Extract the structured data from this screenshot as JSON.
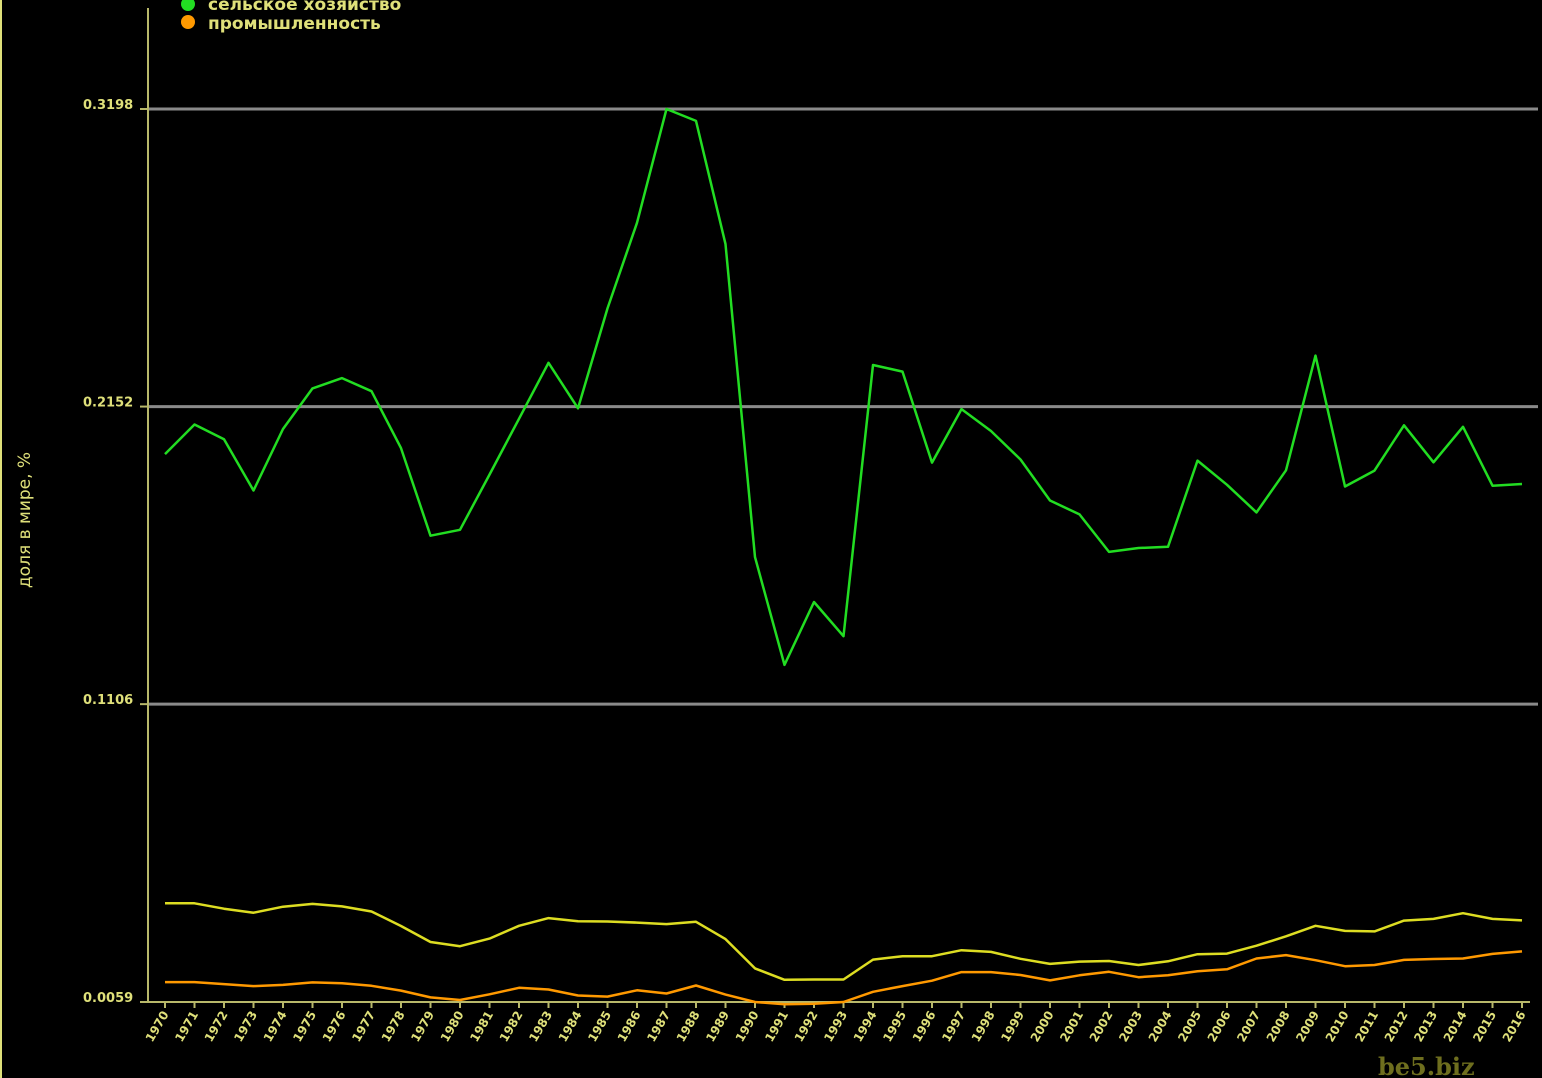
{
  "chart_data": {
    "type": "line",
    "ylabel": "доля в мире, %",
    "xlabel": "",
    "title": "",
    "yticks": [
      "0.0059",
      "0.1106",
      "0.2152",
      "0.3198"
    ],
    "ylim": [
      0.0059,
      0.3198
    ],
    "grid": true,
    "legend_position": "top-left",
    "legend": [
      {
        "label": "сельское хозяйство",
        "color": "#22dd22"
      },
      {
        "label": "промышленность",
        "color": "#ff9900"
      }
    ],
    "x": [
      "1970",
      "1971",
      "1972",
      "1973",
      "1974",
      "1975",
      "1976",
      "1977",
      "1978",
      "1979",
      "1980",
      "1981",
      "1982",
      "1983",
      "1984",
      "1985",
      "1986",
      "1987",
      "1988",
      "1989",
      "1990",
      "1991",
      "1992",
      "1993",
      "1994",
      "1995",
      "1996",
      "1997",
      "1998",
      "1999",
      "2000",
      "2001",
      "2002",
      "2003",
      "2004",
      "2005",
      "2006",
      "2007",
      "2008",
      "2009",
      "2010",
      "2011",
      "2012",
      "2013",
      "2014",
      "2015",
      "2016"
    ],
    "series": [
      {
        "name": "сельское хозяйство",
        "color": "#22dd22",
        "values": [
          0.1985,
          0.2089,
          0.2037,
          0.1857,
          0.2073,
          0.2216,
          0.2252,
          0.2206,
          0.2006,
          0.1698,
          0.1719,
          0.1913,
          0.2109,
          0.2306,
          0.2146,
          0.2497,
          0.2798,
          0.3198,
          0.3156,
          0.2723,
          0.1623,
          0.1244,
          0.1465,
          0.1345,
          0.2298,
          0.2275,
          0.1955,
          0.2143,
          0.2066,
          0.1966,
          0.1822,
          0.1773,
          0.1641,
          0.1655,
          0.1659,
          0.1962,
          0.1877,
          0.178,
          0.1928,
          0.2331,
          0.1871,
          0.1927,
          0.2086,
          0.1956,
          0.2081,
          0.1874,
          0.188
        ]
      },
      {
        "name": "",
        "color": "#dddd22",
        "values": [
          0.0406,
          0.0406,
          0.0387,
          0.0373,
          0.0394,
          0.0404,
          0.0395,
          0.0377,
          0.0326,
          0.027,
          0.0255,
          0.0282,
          0.0327,
          0.0354,
          0.0343,
          0.0342,
          0.0338,
          0.0333,
          0.0341,
          0.028,
          0.0177,
          0.0137,
          0.0138,
          0.0138,
          0.0208,
          0.022,
          0.022,
          0.0241,
          0.0235,
          0.0211,
          0.0193,
          0.0201,
          0.0203,
          0.0189,
          0.0202,
          0.0227,
          0.0229,
          0.0257,
          0.029,
          0.0327,
          0.0309,
          0.0307,
          0.0345,
          0.0351,
          0.0371,
          0.0351,
          0.0346
        ]
      },
      {
        "name": "промышленность",
        "color": "#ff9900",
        "values": [
          0.0129,
          0.0129,
          0.0122,
          0.0115,
          0.0119,
          0.0128,
          0.0125,
          0.0116,
          0.0099,
          0.0075,
          0.0066,
          0.0086,
          0.0109,
          0.0103,
          0.0082,
          0.0078,
          0.01,
          0.0089,
          0.0117,
          0.0085,
          0.0059,
          0.0051,
          0.0053,
          0.0059,
          0.0095,
          0.0115,
          0.0134,
          0.0164,
          0.0164,
          0.0154,
          0.0135,
          0.0153,
          0.0165,
          0.0146,
          0.0153,
          0.0167,
          0.0174,
          0.0212,
          0.0224,
          0.0206,
          0.0185,
          0.0189,
          0.0207,
          0.021,
          0.0212,
          0.0228,
          0.0237
        ]
      }
    ]
  },
  "watermark": "be5.biz"
}
